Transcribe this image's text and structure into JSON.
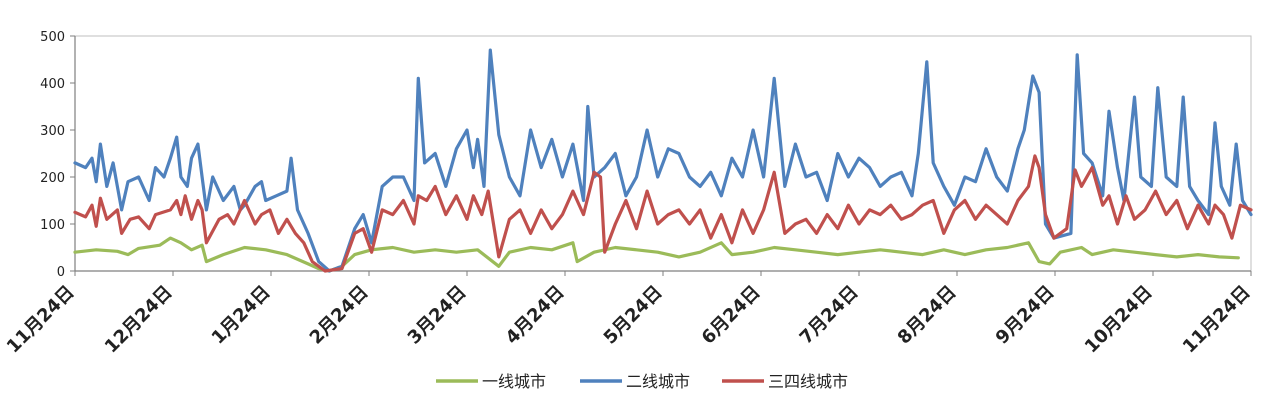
{
  "chart_data": {
    "type": "line",
    "title": "",
    "xlabel": "",
    "ylabel": "",
    "ylim": [
      0,
      500
    ],
    "yticks": [
      0,
      100,
      200,
      300,
      400,
      500
    ],
    "x_tick_labels": [
      "11月24日",
      "12月24日",
      "1月24日",
      "2月24日",
      "3月24日",
      "4月24日",
      "5月24日",
      "6月24日",
      "7月24日",
      "8月24日",
      "9月24日",
      "10月24日",
      "11月24日"
    ],
    "grid": false,
    "legend_position": "bottom",
    "x_count": 366,
    "series": [
      {
        "name": "一线城市",
        "color": "#9BBB59",
        "anchors": [
          [
            0,
            40
          ],
          [
            10,
            45
          ],
          [
            20,
            42
          ],
          [
            25,
            35
          ],
          [
            30,
            48
          ],
          [
            40,
            55
          ],
          [
            45,
            70
          ],
          [
            50,
            60
          ],
          [
            55,
            45
          ],
          [
            60,
            55
          ],
          [
            62,
            20
          ],
          [
            70,
            35
          ],
          [
            80,
            50
          ],
          [
            90,
            45
          ],
          [
            100,
            35
          ],
          [
            110,
            15
          ],
          [
            115,
            5
          ],
          [
            120,
            0
          ],
          [
            126,
            10
          ],
          [
            132,
            35
          ],
          [
            140,
            45
          ],
          [
            150,
            50
          ],
          [
            160,
            40
          ],
          [
            170,
            45
          ],
          [
            180,
            40
          ],
          [
            190,
            45
          ],
          [
            200,
            10
          ],
          [
            205,
            40
          ],
          [
            215,
            50
          ],
          [
            225,
            45
          ],
          [
            235,
            60
          ],
          [
            237,
            20
          ],
          [
            245,
            40
          ],
          [
            255,
            50
          ],
          [
            265,
            45
          ],
          [
            275,
            40
          ],
          [
            285,
            30
          ],
          [
            295,
            40
          ],
          [
            305,
            60
          ],
          [
            310,
            35
          ],
          [
            320,
            40
          ],
          [
            330,
            50
          ],
          [
            340,
            45
          ],
          [
            350,
            40
          ],
          [
            360,
            35
          ],
          [
            370,
            40
          ],
          [
            380,
            45
          ],
          [
            390,
            40
          ],
          [
            400,
            35
          ],
          [
            410,
            45
          ],
          [
            420,
            35
          ],
          [
            430,
            45
          ],
          [
            440,
            50
          ],
          [
            450,
            60
          ],
          [
            455,
            20
          ],
          [
            460,
            15
          ],
          [
            465,
            40
          ],
          [
            475,
            50
          ],
          [
            480,
            35
          ],
          [
            490,
            45
          ],
          [
            500,
            40
          ],
          [
            510,
            35
          ],
          [
            520,
            30
          ],
          [
            530,
            35
          ],
          [
            540,
            30
          ],
          [
            549,
            28
          ]
        ]
      },
      {
        "name": "二线城市",
        "color": "#4F81BD",
        "anchors": [
          [
            0,
            230
          ],
          [
            5,
            220
          ],
          [
            8,
            240
          ],
          [
            10,
            190
          ],
          [
            12,
            270
          ],
          [
            15,
            180
          ],
          [
            18,
            230
          ],
          [
            22,
            130
          ],
          [
            25,
            190
          ],
          [
            30,
            200
          ],
          [
            35,
            150
          ],
          [
            38,
            220
          ],
          [
            42,
            200
          ],
          [
            45,
            240
          ],
          [
            48,
            285
          ],
          [
            50,
            200
          ],
          [
            53,
            180
          ],
          [
            55,
            240
          ],
          [
            58,
            270
          ],
          [
            60,
            200
          ],
          [
            62,
            130
          ],
          [
            65,
            200
          ],
          [
            70,
            150
          ],
          [
            75,
            180
          ],
          [
            78,
            130
          ],
          [
            80,
            140
          ],
          [
            85,
            180
          ],
          [
            88,
            190
          ],
          [
            90,
            150
          ],
          [
            95,
            160
          ],
          [
            100,
            170
          ],
          [
            102,
            240
          ],
          [
            105,
            130
          ],
          [
            110,
            80
          ],
          [
            115,
            20
          ],
          [
            120,
            0
          ],
          [
            126,
            10
          ],
          [
            132,
            90
          ],
          [
            136,
            120
          ],
          [
            140,
            60
          ],
          [
            145,
            180
          ],
          [
            150,
            200
          ],
          [
            155,
            200
          ],
          [
            160,
            150
          ],
          [
            162,
            410
          ],
          [
            165,
            230
          ],
          [
            170,
            250
          ],
          [
            175,
            180
          ],
          [
            180,
            260
          ],
          [
            185,
            300
          ],
          [
            188,
            220
          ],
          [
            190,
            280
          ],
          [
            193,
            180
          ],
          [
            196,
            470
          ],
          [
            200,
            290
          ],
          [
            205,
            200
          ],
          [
            210,
            160
          ],
          [
            215,
            300
          ],
          [
            220,
            220
          ],
          [
            225,
            280
          ],
          [
            230,
            200
          ],
          [
            235,
            270
          ],
          [
            240,
            150
          ],
          [
            242,
            350
          ],
          [
            245,
            200
          ],
          [
            250,
            220
          ],
          [
            255,
            250
          ],
          [
            260,
            160
          ],
          [
            265,
            200
          ],
          [
            270,
            300
          ],
          [
            275,
            200
          ],
          [
            280,
            260
          ],
          [
            285,
            250
          ],
          [
            290,
            200
          ],
          [
            295,
            180
          ],
          [
            300,
            210
          ],
          [
            305,
            160
          ],
          [
            310,
            240
          ],
          [
            315,
            200
          ],
          [
            320,
            300
          ],
          [
            325,
            200
          ],
          [
            330,
            410
          ],
          [
            335,
            180
          ],
          [
            340,
            270
          ],
          [
            345,
            200
          ],
          [
            350,
            210
          ],
          [
            355,
            150
          ],
          [
            360,
            250
          ],
          [
            365,
            200
          ],
          [
            370,
            240
          ],
          [
            375,
            220
          ],
          [
            380,
            180
          ],
          [
            385,
            200
          ],
          [
            390,
            210
          ],
          [
            395,
            160
          ],
          [
            398,
            250
          ],
          [
            402,
            445
          ],
          [
            405,
            230
          ],
          [
            410,
            180
          ],
          [
            415,
            140
          ],
          [
            420,
            200
          ],
          [
            425,
            190
          ],
          [
            430,
            260
          ],
          [
            435,
            200
          ],
          [
            440,
            170
          ],
          [
            445,
            260
          ],
          [
            448,
            300
          ],
          [
            452,
            415
          ],
          [
            455,
            380
          ],
          [
            458,
            100
          ],
          [
            462,
            70
          ],
          [
            470,
            80
          ],
          [
            473,
            460
          ],
          [
            476,
            250
          ],
          [
            480,
            230
          ],
          [
            485,
            160
          ],
          [
            488,
            340
          ],
          [
            492,
            220
          ],
          [
            495,
            150
          ],
          [
            500,
            370
          ],
          [
            503,
            200
          ],
          [
            508,
            180
          ],
          [
            511,
            390
          ],
          [
            515,
            200
          ],
          [
            520,
            180
          ],
          [
            523,
            370
          ],
          [
            526,
            180
          ],
          [
            530,
            150
          ],
          [
            535,
            120
          ],
          [
            538,
            315
          ],
          [
            541,
            180
          ],
          [
            545,
            140
          ],
          [
            548,
            270
          ],
          [
            551,
            150
          ],
          [
            555,
            120
          ]
        ]
      },
      {
        "name": "三四线城市",
        "color": "#C0504D",
        "anchors": [
          [
            0,
            125
          ],
          [
            5,
            115
          ],
          [
            8,
            140
          ],
          [
            10,
            95
          ],
          [
            12,
            155
          ],
          [
            15,
            110
          ],
          [
            20,
            130
          ],
          [
            22,
            80
          ],
          [
            26,
            110
          ],
          [
            30,
            115
          ],
          [
            35,
            90
          ],
          [
            38,
            120
          ],
          [
            45,
            130
          ],
          [
            48,
            150
          ],
          [
            50,
            120
          ],
          [
            52,
            160
          ],
          [
            55,
            110
          ],
          [
            58,
            150
          ],
          [
            60,
            130
          ],
          [
            62,
            60
          ],
          [
            68,
            110
          ],
          [
            72,
            120
          ],
          [
            75,
            100
          ],
          [
            80,
            150
          ],
          [
            85,
            100
          ],
          [
            88,
            120
          ],
          [
            92,
            130
          ],
          [
            96,
            80
          ],
          [
            100,
            110
          ],
          [
            104,
            80
          ],
          [
            108,
            60
          ],
          [
            112,
            20
          ],
          [
            118,
            0
          ],
          [
            126,
            5
          ],
          [
            132,
            80
          ],
          [
            136,
            90
          ],
          [
            140,
            40
          ],
          [
            145,
            130
          ],
          [
            150,
            120
          ],
          [
            155,
            150
          ],
          [
            160,
            100
          ],
          [
            162,
            160
          ],
          [
            166,
            150
          ],
          [
            170,
            180
          ],
          [
            175,
            120
          ],
          [
            180,
            160
          ],
          [
            185,
            110
          ],
          [
            188,
            160
          ],
          [
            192,
            120
          ],
          [
            195,
            170
          ],
          [
            200,
            30
          ],
          [
            205,
            110
          ],
          [
            210,
            130
          ],
          [
            215,
            80
          ],
          [
            220,
            130
          ],
          [
            225,
            90
          ],
          [
            230,
            120
          ],
          [
            235,
            170
          ],
          [
            240,
            120
          ],
          [
            245,
            210
          ],
          [
            248,
            200
          ],
          [
            250,
            40
          ],
          [
            255,
            100
          ],
          [
            260,
            150
          ],
          [
            265,
            90
          ],
          [
            270,
            170
          ],
          [
            275,
            100
          ],
          [
            280,
            120
          ],
          [
            285,
            130
          ],
          [
            290,
            100
          ],
          [
            295,
            130
          ],
          [
            300,
            70
          ],
          [
            305,
            120
          ],
          [
            310,
            60
          ],
          [
            315,
            130
          ],
          [
            320,
            80
          ],
          [
            325,
            130
          ],
          [
            330,
            210
          ],
          [
            335,
            80
          ],
          [
            340,
            100
          ],
          [
            345,
            110
          ],
          [
            350,
            80
          ],
          [
            355,
            120
          ],
          [
            360,
            90
          ],
          [
            365,
            140
          ],
          [
            370,
            100
          ],
          [
            375,
            130
          ],
          [
            380,
            120
          ],
          [
            385,
            140
          ],
          [
            390,
            110
          ],
          [
            395,
            120
          ],
          [
            400,
            140
          ],
          [
            405,
            150
          ],
          [
            410,
            80
          ],
          [
            415,
            130
          ],
          [
            420,
            150
          ],
          [
            425,
            110
          ],
          [
            430,
            140
          ],
          [
            435,
            120
          ],
          [
            440,
            100
          ],
          [
            445,
            150
          ],
          [
            450,
            180
          ],
          [
            453,
            245
          ],
          [
            455,
            220
          ],
          [
            458,
            120
          ],
          [
            462,
            70
          ],
          [
            468,
            90
          ],
          [
            472,
            215
          ],
          [
            475,
            180
          ],
          [
            480,
            220
          ],
          [
            485,
            140
          ],
          [
            488,
            160
          ],
          [
            492,
            100
          ],
          [
            496,
            160
          ],
          [
            500,
            110
          ],
          [
            505,
            130
          ],
          [
            510,
            170
          ],
          [
            515,
            120
          ],
          [
            520,
            150
          ],
          [
            525,
            90
          ],
          [
            530,
            140
          ],
          [
            535,
            100
          ],
          [
            538,
            140
          ],
          [
            542,
            120
          ],
          [
            546,
            70
          ],
          [
            550,
            140
          ],
          [
            555,
            130
          ]
        ]
      }
    ]
  }
}
